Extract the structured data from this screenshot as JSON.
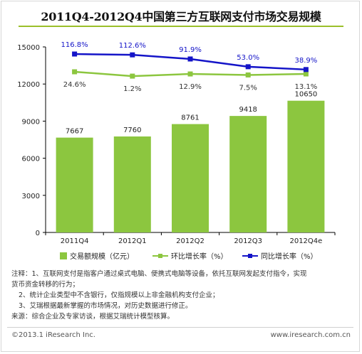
{
  "title": "2011Q4-2012Q4中国第三方互联网支付市场交易规模",
  "colors": {
    "bar": "#8cc63f",
    "ring": "#8cc63f",
    "yoy": "#1414c8",
    "qoq_label": "#333333",
    "yoy_label": "#1414c8"
  },
  "chart_data": {
    "type": "bar",
    "categories": [
      "2011Q4",
      "2012Q1",
      "2012Q2",
      "2012Q3",
      "2012Q4e"
    ],
    "series": [
      {
        "name": "交易额规模（亿元）",
        "type": "bar",
        "values": [
          7667,
          7760,
          8761,
          9418,
          10650
        ],
        "labels": [
          "7667",
          "7760",
          "8761",
          "9418",
          "10650"
        ]
      },
      {
        "name": "环比增长率（%）",
        "type": "line",
        "values": [
          24.6,
          1.2,
          12.9,
          7.5,
          13.1
        ],
        "labels": [
          "24.6%",
          "1.2%",
          "12.9%",
          "7.5%",
          "13.1%"
        ]
      },
      {
        "name": "同比增长率（%）",
        "type": "line",
        "values": [
          116.8,
          112.6,
          91.9,
          53.0,
          38.9
        ],
        "labels": [
          "116.8%",
          "112.6%",
          "91.9%",
          "53.0%",
          "38.9%"
        ]
      }
    ],
    "yticks": [
      "0",
      "3000",
      "6000",
      "9000",
      "12000",
      "15000"
    ],
    "ylim": [
      0,
      15000
    ],
    "grid": false,
    "legend_position": "bottom"
  },
  "notes": {
    "line1": "注释：1、互联网支付是指客户通过桌式电脑、便携式电脑等设备，依托互联网发起支付指令，实现",
    "line2": "货币资金转移的行为；",
    "line3": "2、统计企业类型中不含银行，仅指规模以上非金融机构支付企业；",
    "line4": "3、艾瑞根据最新掌握的市场情况，对历史数据进行修正。",
    "line5": "来源：综合企业及专家访谈，根据艾瑞统计模型核算。"
  },
  "footer": {
    "copyright": "©2013.1 iResearch Inc.",
    "website": "www.iresearch.com.cn"
  }
}
